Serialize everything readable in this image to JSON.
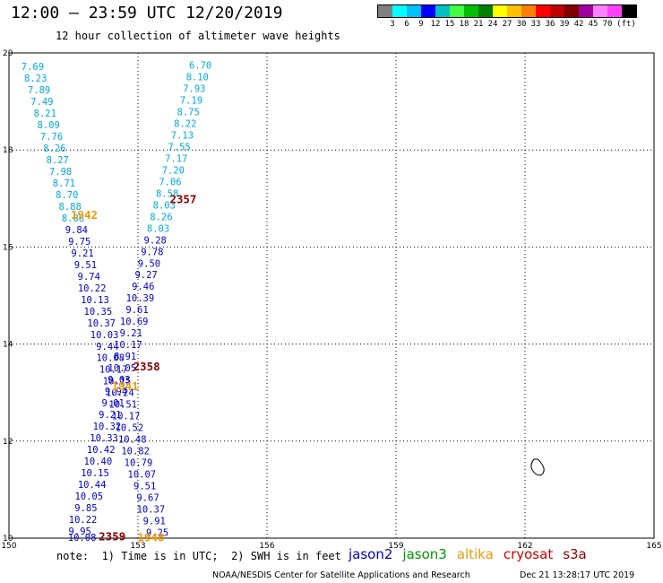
{
  "header": {
    "title": "12:00 – 23:59 UTC 12/20/2019",
    "subtitle": "12 hour collection of altimeter wave heights"
  },
  "legend": {
    "unit": "(ft)",
    "colors": [
      "#808080",
      "#00ffff",
      "#00c0ff",
      "#0000ff",
      "#00c0c0",
      "#40ff40",
      "#00c000",
      "#008000",
      "#ffff00",
      "#ffc000",
      "#ff8000",
      "#ff0000",
      "#c00000",
      "#800000",
      "#a000a0",
      "#ff80ff",
      "#ff40ff",
      "#000000"
    ],
    "ticks": [
      "3",
      "6",
      "9",
      "12",
      "15",
      "18",
      "21",
      "24",
      "27",
      "30",
      "33",
      "36",
      "39",
      "42",
      "45",
      "70"
    ]
  },
  "map": {
    "lon_range": [
      150,
      165
    ],
    "lat_range": [
      10,
      20
    ],
    "x_ticks": [
      "150",
      "153",
      "156",
      "159",
      "162",
      "165"
    ],
    "y_ticks": [
      "20",
      "18",
      "16",
      "14",
      "12",
      "10"
    ],
    "island": "coastline-outline"
  },
  "observations": [
    {
      "lon": 150.55,
      "lat": 19.72,
      "value": "7.69",
      "color": "#00aadd"
    },
    {
      "lon": 150.62,
      "lat": 19.48,
      "value": "8.23",
      "color": "#00aadd"
    },
    {
      "lon": 150.7,
      "lat": 19.24,
      "value": "7.89",
      "color": "#00aadd"
    },
    {
      "lon": 150.77,
      "lat": 19.0,
      "value": "7.49",
      "color": "#00aadd"
    },
    {
      "lon": 150.84,
      "lat": 18.76,
      "value": "8.21",
      "color": "#00aadd"
    },
    {
      "lon": 150.92,
      "lat": 18.52,
      "value": "8.09",
      "color": "#00aadd"
    },
    {
      "lon": 150.99,
      "lat": 18.28,
      "value": "7.76",
      "color": "#00aadd"
    },
    {
      "lon": 151.06,
      "lat": 18.04,
      "value": "8.26",
      "color": "#00aadd"
    },
    {
      "lon": 151.13,
      "lat": 17.8,
      "value": "8.27",
      "color": "#00aadd"
    },
    {
      "lon": 151.2,
      "lat": 17.56,
      "value": "7.98",
      "color": "#00aadd"
    },
    {
      "lon": 151.28,
      "lat": 17.32,
      "value": "8.71",
      "color": "#00aadd"
    },
    {
      "lon": 151.35,
      "lat": 17.08,
      "value": "8.70",
      "color": "#00aadd"
    },
    {
      "lon": 151.42,
      "lat": 16.84,
      "value": "8.88",
      "color": "#00aadd"
    },
    {
      "lon": 151.49,
      "lat": 16.6,
      "value": "8.88",
      "color": "#00aadd"
    },
    {
      "lon": 151.57,
      "lat": 16.36,
      "value": "9.84",
      "color": "#0000cc"
    },
    {
      "lon": 151.64,
      "lat": 16.12,
      "value": "9.75",
      "color": "#0000cc"
    },
    {
      "lon": 151.71,
      "lat": 15.88,
      "value": "9.21",
      "color": "#0000cc"
    },
    {
      "lon": 151.78,
      "lat": 15.64,
      "value": "9.51",
      "color": "#0000cc"
    },
    {
      "lon": 151.86,
      "lat": 15.4,
      "value": "9.74",
      "color": "#0000cc"
    },
    {
      "lon": 151.93,
      "lat": 15.16,
      "value": "10.22",
      "color": "#0000cc"
    },
    {
      "lon": 152.0,
      "lat": 14.92,
      "value": "10.13",
      "color": "#0000cc"
    },
    {
      "lon": 152.07,
      "lat": 14.68,
      "value": "10.35",
      "color": "#0000cc"
    },
    {
      "lon": 152.15,
      "lat": 14.44,
      "value": "10.37",
      "color": "#0000cc"
    },
    {
      "lon": 152.22,
      "lat": 14.2,
      "value": "10.03",
      "color": "#0000cc"
    },
    {
      "lon": 152.29,
      "lat": 13.96,
      "value": "9.44",
      "color": "#0000cc"
    },
    {
      "lon": 152.36,
      "lat": 13.72,
      "value": "10.08",
      "color": "#0000cc"
    },
    {
      "lon": 152.43,
      "lat": 13.48,
      "value": "10.17",
      "color": "#0000cc"
    },
    {
      "lon": 152.51,
      "lat": 13.24,
      "value": "10.15",
      "color": "#0000cc"
    },
    {
      "lon": 152.58,
      "lat": 13.0,
      "value": "10.24",
      "color": "#0000cc"
    },
    {
      "lon": 152.65,
      "lat": 12.76,
      "value": "10.51",
      "color": "#0000cc"
    },
    {
      "lon": 152.72,
      "lat": 12.52,
      "value": "10.17",
      "color": "#0000cc"
    },
    {
      "lon": 152.8,
      "lat": 12.28,
      "value": "10.52",
      "color": "#0000cc"
    },
    {
      "lon": 152.87,
      "lat": 12.04,
      "value": "10.48",
      "color": "#0000cc"
    },
    {
      "lon": 152.94,
      "lat": 11.8,
      "value": "10.82",
      "color": "#0000cc"
    },
    {
      "lon": 153.01,
      "lat": 11.56,
      "value": "10.79",
      "color": "#0000cc"
    },
    {
      "lon": 153.09,
      "lat": 11.32,
      "value": "10.07",
      "color": "#0000cc"
    },
    {
      "lon": 153.16,
      "lat": 11.08,
      "value": "9.51",
      "color": "#0000cc"
    },
    {
      "lon": 153.23,
      "lat": 10.84,
      "value": "9.67",
      "color": "#0000cc"
    },
    {
      "lon": 153.3,
      "lat": 10.6,
      "value": "10.37",
      "color": "#0000cc"
    },
    {
      "lon": 153.38,
      "lat": 10.36,
      "value": "9.91",
      "color": "#0000cc"
    },
    {
      "lon": 153.45,
      "lat": 10.12,
      "value": "9.25",
      "color": "#0000cc"
    },
    {
      "lon": 154.45,
      "lat": 19.75,
      "value": "6.70",
      "color": "#00aadd"
    },
    {
      "lon": 154.38,
      "lat": 19.51,
      "value": "8.10",
      "color": "#00aadd"
    },
    {
      "lon": 154.31,
      "lat": 19.27,
      "value": "7.93",
      "color": "#00aadd"
    },
    {
      "lon": 154.24,
      "lat": 19.03,
      "value": "7.19",
      "color": "#00aadd"
    },
    {
      "lon": 154.17,
      "lat": 18.79,
      "value": "8.75",
      "color": "#00aadd"
    },
    {
      "lon": 154.1,
      "lat": 18.55,
      "value": "8.22",
      "color": "#00aadd"
    },
    {
      "lon": 154.03,
      "lat": 18.31,
      "value": "7.13",
      "color": "#00aadd"
    },
    {
      "lon": 153.96,
      "lat": 18.07,
      "value": "7.55",
      "color": "#00aadd"
    },
    {
      "lon": 153.89,
      "lat": 17.83,
      "value": "7.17",
      "color": "#00aadd"
    },
    {
      "lon": 153.82,
      "lat": 17.59,
      "value": "7.20",
      "color": "#00aadd"
    },
    {
      "lon": 153.75,
      "lat": 17.35,
      "value": "7.06",
      "color": "#00aadd"
    },
    {
      "lon": 153.68,
      "lat": 17.11,
      "value": "8.58",
      "color": "#00aadd"
    },
    {
      "lon": 153.61,
      "lat": 16.87,
      "value": "8.03",
      "color": "#00aadd"
    },
    {
      "lon": 153.54,
      "lat": 16.63,
      "value": "8.26",
      "color": "#00aadd"
    },
    {
      "lon": 153.47,
      "lat": 16.39,
      "value": "8.03",
      "color": "#00aadd"
    },
    {
      "lon": 153.4,
      "lat": 16.15,
      "value": "9.28",
      "color": "#0000cc"
    },
    {
      "lon": 153.33,
      "lat": 15.91,
      "value": "9.78",
      "color": "#0000cc"
    },
    {
      "lon": 153.26,
      "lat": 15.67,
      "value": "9.50",
      "color": "#0000cc"
    },
    {
      "lon": 153.19,
      "lat": 15.43,
      "value": "9.27",
      "color": "#0000cc"
    },
    {
      "lon": 153.12,
      "lat": 15.19,
      "value": "9.46",
      "color": "#0000cc"
    },
    {
      "lon": 153.05,
      "lat": 14.95,
      "value": "10.39",
      "color": "#0000cc"
    },
    {
      "lon": 152.98,
      "lat": 14.71,
      "value": "9.61",
      "color": "#0000cc"
    },
    {
      "lon": 152.91,
      "lat": 14.47,
      "value": "10.69",
      "color": "#0000cc"
    },
    {
      "lon": 152.84,
      "lat": 14.23,
      "value": "9.21",
      "color": "#0000cc"
    },
    {
      "lon": 152.77,
      "lat": 13.99,
      "value": "10.17",
      "color": "#0000cc"
    },
    {
      "lon": 152.7,
      "lat": 13.75,
      "value": "8.91",
      "color": "#0000cc"
    },
    {
      "lon": 152.63,
      "lat": 13.51,
      "value": "10.05",
      "color": "#0000cc"
    },
    {
      "lon": 152.56,
      "lat": 13.27,
      "value": "9.03",
      "color": "#0000cc"
    },
    {
      "lon": 152.49,
      "lat": 13.03,
      "value": "9.94",
      "color": "#0000cc"
    },
    {
      "lon": 152.42,
      "lat": 12.79,
      "value": "9.01",
      "color": "#0000cc"
    },
    {
      "lon": 152.35,
      "lat": 12.55,
      "value": "9.21",
      "color": "#0000cc"
    },
    {
      "lon": 152.28,
      "lat": 12.31,
      "value": "10.32",
      "color": "#0000cc"
    },
    {
      "lon": 152.21,
      "lat": 12.07,
      "value": "10.33",
      "color": "#0000cc"
    },
    {
      "lon": 152.14,
      "lat": 11.83,
      "value": "10.42",
      "color": "#0000cc"
    },
    {
      "lon": 152.07,
      "lat": 11.59,
      "value": "10.40",
      "color": "#0000cc"
    },
    {
      "lon": 152.0,
      "lat": 11.35,
      "value": "10.15",
      "color": "#0000cc"
    },
    {
      "lon": 151.93,
      "lat": 11.11,
      "value": "10.44",
      "color": "#0000cc"
    },
    {
      "lon": 151.86,
      "lat": 10.87,
      "value": "10.05",
      "color": "#0000cc"
    },
    {
      "lon": 151.79,
      "lat": 10.63,
      "value": "9.85",
      "color": "#0000cc"
    },
    {
      "lon": 151.72,
      "lat": 10.39,
      "value": "10.22",
      "color": "#0000cc"
    },
    {
      "lon": 151.65,
      "lat": 10.15,
      "value": "9.95",
      "color": "#0000cc"
    },
    {
      "lon": 151.7,
      "lat": 10.02,
      "value": "10.08",
      "color": "#0000cc"
    }
  ],
  "time_labels": [
    {
      "lon": 151.75,
      "lat": 16.65,
      "value": "1942",
      "color": "#ee9900"
    },
    {
      "lon": 154.05,
      "lat": 16.98,
      "value": "2357",
      "color": "#880000"
    },
    {
      "lon": 153.2,
      "lat": 13.53,
      "value": "2358",
      "color": "#880000"
    },
    {
      "lon": 152.7,
      "lat": 13.12,
      "value": "1941",
      "color": "#ee9900"
    },
    {
      "lon": 152.4,
      "lat": 10.03,
      "value": "2359",
      "color": "#880000"
    },
    {
      "lon": 153.3,
      "lat": 10.01,
      "value": "1940",
      "color": "#ee9900"
    }
  ],
  "footer": {
    "note": "note:  1) Time is in UTC;  2) SWH is in feet",
    "satellites": [
      {
        "label": "jason2",
        "color": "#0000cc"
      },
      {
        "label": "jason3",
        "color": "#009900"
      },
      {
        "label": "altika",
        "color": "#ee9900"
      },
      {
        "label": "cryosat",
        "color": "#cc0000"
      },
      {
        "label": "s3a",
        "color": "#880000"
      }
    ],
    "credit": "NOAA/NESDIS Center for Satellite Applications and Research",
    "generated": "Dec 21 13:28:17 UTC 2019"
  }
}
